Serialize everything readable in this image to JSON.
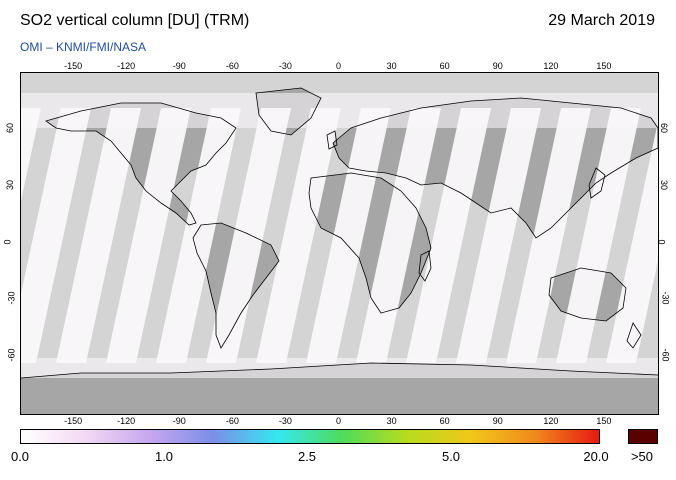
{
  "header": {
    "title": "SO2 vertical column [DU] (TRM)",
    "date": "29 March 2019",
    "credit": "OMI  –  KNMI/FMI/NASA"
  },
  "map": {
    "lon_ticks": [
      "-150",
      "-120",
      "-90",
      "-60",
      "-30",
      "0",
      "30",
      "60",
      "90",
      "120",
      "150"
    ],
    "lon_values": [
      -150,
      -120,
      -90,
      -60,
      -30,
      0,
      30,
      60,
      90,
      120,
      150
    ],
    "lat_ticks": [
      "60",
      "30",
      "0",
      "-30",
      "-60"
    ],
    "lat_values": [
      60,
      30,
      0,
      -30,
      -60
    ],
    "colors": {
      "no_data": "#d4d4d4",
      "land_no_data": "#a6a6a6",
      "observed": "#fbf8fc",
      "coastline": "#000000"
    }
  },
  "colorbar": {
    "labels": [
      "0.0",
      "1.0",
      "2.5",
      "5.0",
      "20.0"
    ],
    "overflow_label": ">50",
    "overflow_color": "#5a0000",
    "gradient_colors": [
      "#ffffff",
      "#f3d9f3",
      "#c7a6ef",
      "#7a8fe8",
      "#35e8f0",
      "#4fdc5a",
      "#b6dc1e",
      "#f0c81a",
      "#f08a1c",
      "#e81a12"
    ]
  }
}
